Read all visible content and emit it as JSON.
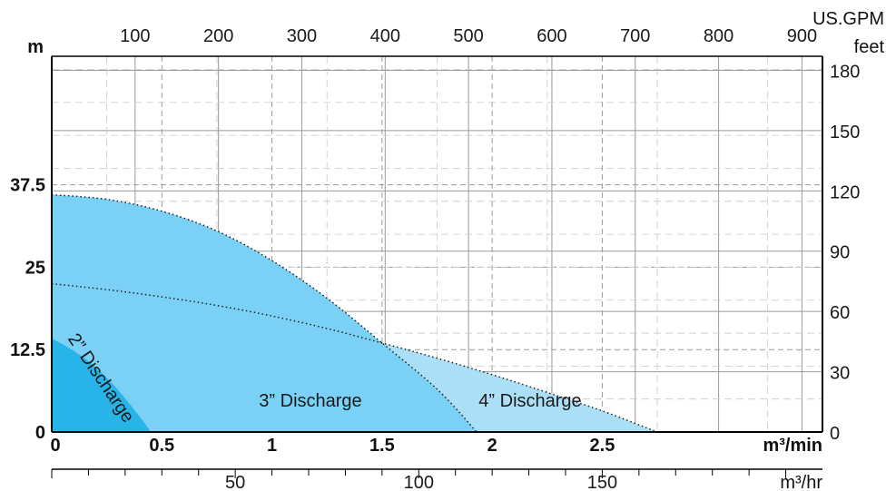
{
  "chart_data": {
    "type": "area",
    "colors": {
      "two_inch": "#27b4e8",
      "three_inch": "#7ad0f5",
      "four_inch": "#abdff6",
      "grid": "#9a9a9a",
      "axis": "#000000"
    },
    "x_axis_bottom": {
      "label": "m³/min",
      "range": [
        0,
        3.5
      ],
      "ticks": [
        "0",
        "0.5",
        "1",
        "1.5",
        "2",
        "2.5"
      ]
    },
    "x_axis_bottom2": {
      "label": "m³/hr",
      "range": [
        0,
        210
      ],
      "ticks": [
        "50",
        "100",
        "150"
      ]
    },
    "x_axis_top": {
      "label": "US.GPM",
      "range": [
        0,
        924.6
      ],
      "ticks": [
        "100",
        "200",
        "300",
        "400",
        "500",
        "600",
        "700",
        "800",
        "900"
      ]
    },
    "y_axis_left": {
      "label": "m",
      "range": [
        0,
        57
      ],
      "ticks": [
        "0",
        "12.5",
        "25",
        "37.5"
      ]
    },
    "y_axis_right": {
      "label": "feet",
      "range": [
        0,
        187
      ],
      "ticks": [
        "0",
        "30",
        "60",
        "90",
        "120",
        "150",
        "180"
      ]
    },
    "grid": true,
    "series": [
      {
        "name": "4” Discharge",
        "x": [
          0,
          0.25,
          0.5,
          0.75,
          1.0,
          1.25,
          1.5,
          1.75,
          2.0,
          2.25,
          2.5,
          2.75
        ],
        "y": [
          22.5,
          21.6,
          20.5,
          19.2,
          17.6,
          15.7,
          13.5,
          11.2,
          8.7,
          6.0,
          3.2,
          0
        ]
      },
      {
        "name": "3” Discharge",
        "x": [
          0,
          0.25,
          0.5,
          0.75,
          1.0,
          1.25,
          1.5,
          1.75,
          1.93
        ],
        "y": [
          36.0,
          35.3,
          33.5,
          30.5,
          26.0,
          20.3,
          13.5,
          6.5,
          0
        ]
      },
      {
        "name": "2” Discharge",
        "x": [
          0,
          0.1,
          0.2,
          0.3,
          0.4,
          0.45
        ],
        "y": [
          14.2,
          12.3,
          9.8,
          6.4,
          2.3,
          0
        ]
      }
    ]
  }
}
